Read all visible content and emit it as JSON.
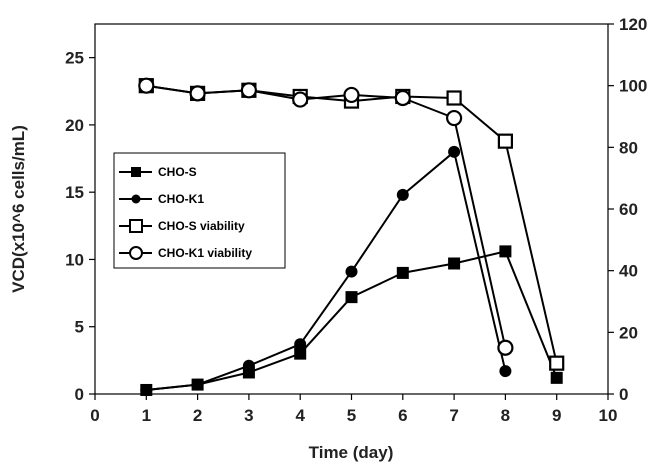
{
  "chart_data": {
    "type": "line",
    "xlabel": "Time (day)",
    "ylabel": "VCD(x10^6 cells/mL)",
    "y2label": "",
    "xlim": [
      0,
      10
    ],
    "ylim": [
      0,
      27.5
    ],
    "y2lim": [
      0,
      120
    ],
    "x_ticks": [
      "0",
      "1",
      "2",
      "3",
      "4",
      "5",
      "6",
      "7",
      "8",
      "9",
      "10"
    ],
    "y_ticks": [
      "0",
      "5",
      "10",
      "15",
      "20",
      "25"
    ],
    "y2_ticks": [
      "0",
      "20",
      "40",
      "60",
      "80",
      "100",
      "120"
    ],
    "grid": false,
    "legend_position": "left-middle",
    "series": [
      {
        "name": "CHO-S",
        "axis": "left",
        "marker": "square-filled",
        "x": [
          1,
          2,
          3,
          4,
          5,
          6,
          7,
          8,
          9
        ],
        "values": [
          0.3,
          0.7,
          1.6,
          3.0,
          7.2,
          9.0,
          9.7,
          10.6,
          1.2
        ]
      },
      {
        "name": "CHO-K1",
        "axis": "left",
        "marker": "circle-filled",
        "x": [
          1,
          2,
          3,
          4,
          5,
          6,
          7,
          8
        ],
        "values": [
          0.3,
          0.7,
          2.1,
          3.7,
          9.1,
          14.8,
          18.0,
          1.7
        ]
      },
      {
        "name": "CHO-S viability",
        "axis": "right",
        "marker": "square-open",
        "x": [
          1,
          2,
          3,
          4,
          5,
          6,
          7,
          8,
          9
        ],
        "values": [
          100,
          97.5,
          98.5,
          96.5,
          95,
          96.5,
          96,
          82,
          10
        ]
      },
      {
        "name": "CHO-K1 viability",
        "axis": "right",
        "marker": "circle-open",
        "x": [
          1,
          2,
          3,
          4,
          5,
          6,
          7,
          8
        ],
        "values": [
          100,
          97.5,
          98.5,
          95.5,
          97,
          96,
          89.5,
          15
        ]
      }
    ]
  },
  "colors": {
    "line": "#000000",
    "axis": "#000000",
    "text": "#222222",
    "background": "#ffffff"
  }
}
